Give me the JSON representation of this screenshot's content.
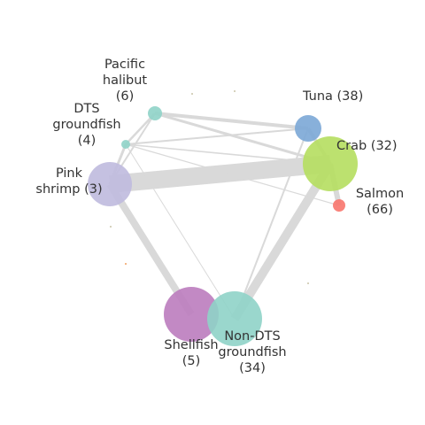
{
  "nodes": [
    {
      "id": "pacific_halibut",
      "label_lines": [
        "Pacific",
        "halibut",
        "(6)"
      ],
      "color": "#8fd3c8"
    },
    {
      "id": "dts_groundfish",
      "label_lines": [
        "DTS",
        "groundfish",
        "(4)"
      ],
      "color": "#8fd3c8"
    },
    {
      "id": "tuna",
      "label_lines": [
        "Tuna (38)"
      ],
      "color": "#7ba7d6"
    },
    {
      "id": "crab",
      "label_lines": [
        "Crab (32)"
      ],
      "color": "#b5de5f"
    },
    {
      "id": "salmon",
      "label_lines": [
        "Salmon",
        "(66)"
      ],
      "color": "#f8766d"
    },
    {
      "id": "pink_shrimp",
      "label_lines": [
        "Pink",
        "shrimp (3)"
      ],
      "color": "#bfbade"
    },
    {
      "id": "shellfish",
      "label_lines": [
        "Shellfish",
        "(5)"
      ],
      "color": "#bb7cbe"
    },
    {
      "id": "non_dts_groundfish",
      "label_lines": [
        "Non-DTS",
        "groundfish",
        "(34)"
      ],
      "color": "#8fd3c8"
    }
  ],
  "edges": [
    {
      "from": "pink_shrimp",
      "to": "crab",
      "weight": 10
    },
    {
      "from": "crab",
      "to": "non_dts_groundfish",
      "weight": 5
    },
    {
      "from": "pink_shrimp",
      "to": "shellfish",
      "weight": 4
    },
    {
      "from": "crab",
      "to": "salmon",
      "weight": 3
    },
    {
      "from": "pacific_halibut",
      "to": "tuna",
      "weight": 2
    },
    {
      "from": "pacific_halibut",
      "to": "crab",
      "weight": 1.5
    },
    {
      "from": "pacific_halibut",
      "to": "dts_groundfish",
      "weight": 1.2
    },
    {
      "from": "dts_groundfish",
      "to": "tuna",
      "weight": 1
    },
    {
      "from": "dts_groundfish",
      "to": "crab",
      "weight": 0.8
    },
    {
      "from": "dts_groundfish",
      "to": "salmon",
      "weight": 0.6
    },
    {
      "from": "dts_groundfish",
      "to": "pink_shrimp",
      "weight": 1.5
    },
    {
      "from": "dts_groundfish",
      "to": "non_dts_groundfish",
      "weight": 0.5
    },
    {
      "from": "tuna",
      "to": "crab",
      "weight": 2
    },
    {
      "from": "tuna",
      "to": "non_dts_groundfish",
      "weight": 1
    },
    {
      "from": "pacific_halibut",
      "to": "pink_shrimp",
      "weight": 1
    }
  ],
  "colors": {
    "edge": "#d9d9d9",
    "label": "#333333",
    "background": "#ffffff"
  }
}
